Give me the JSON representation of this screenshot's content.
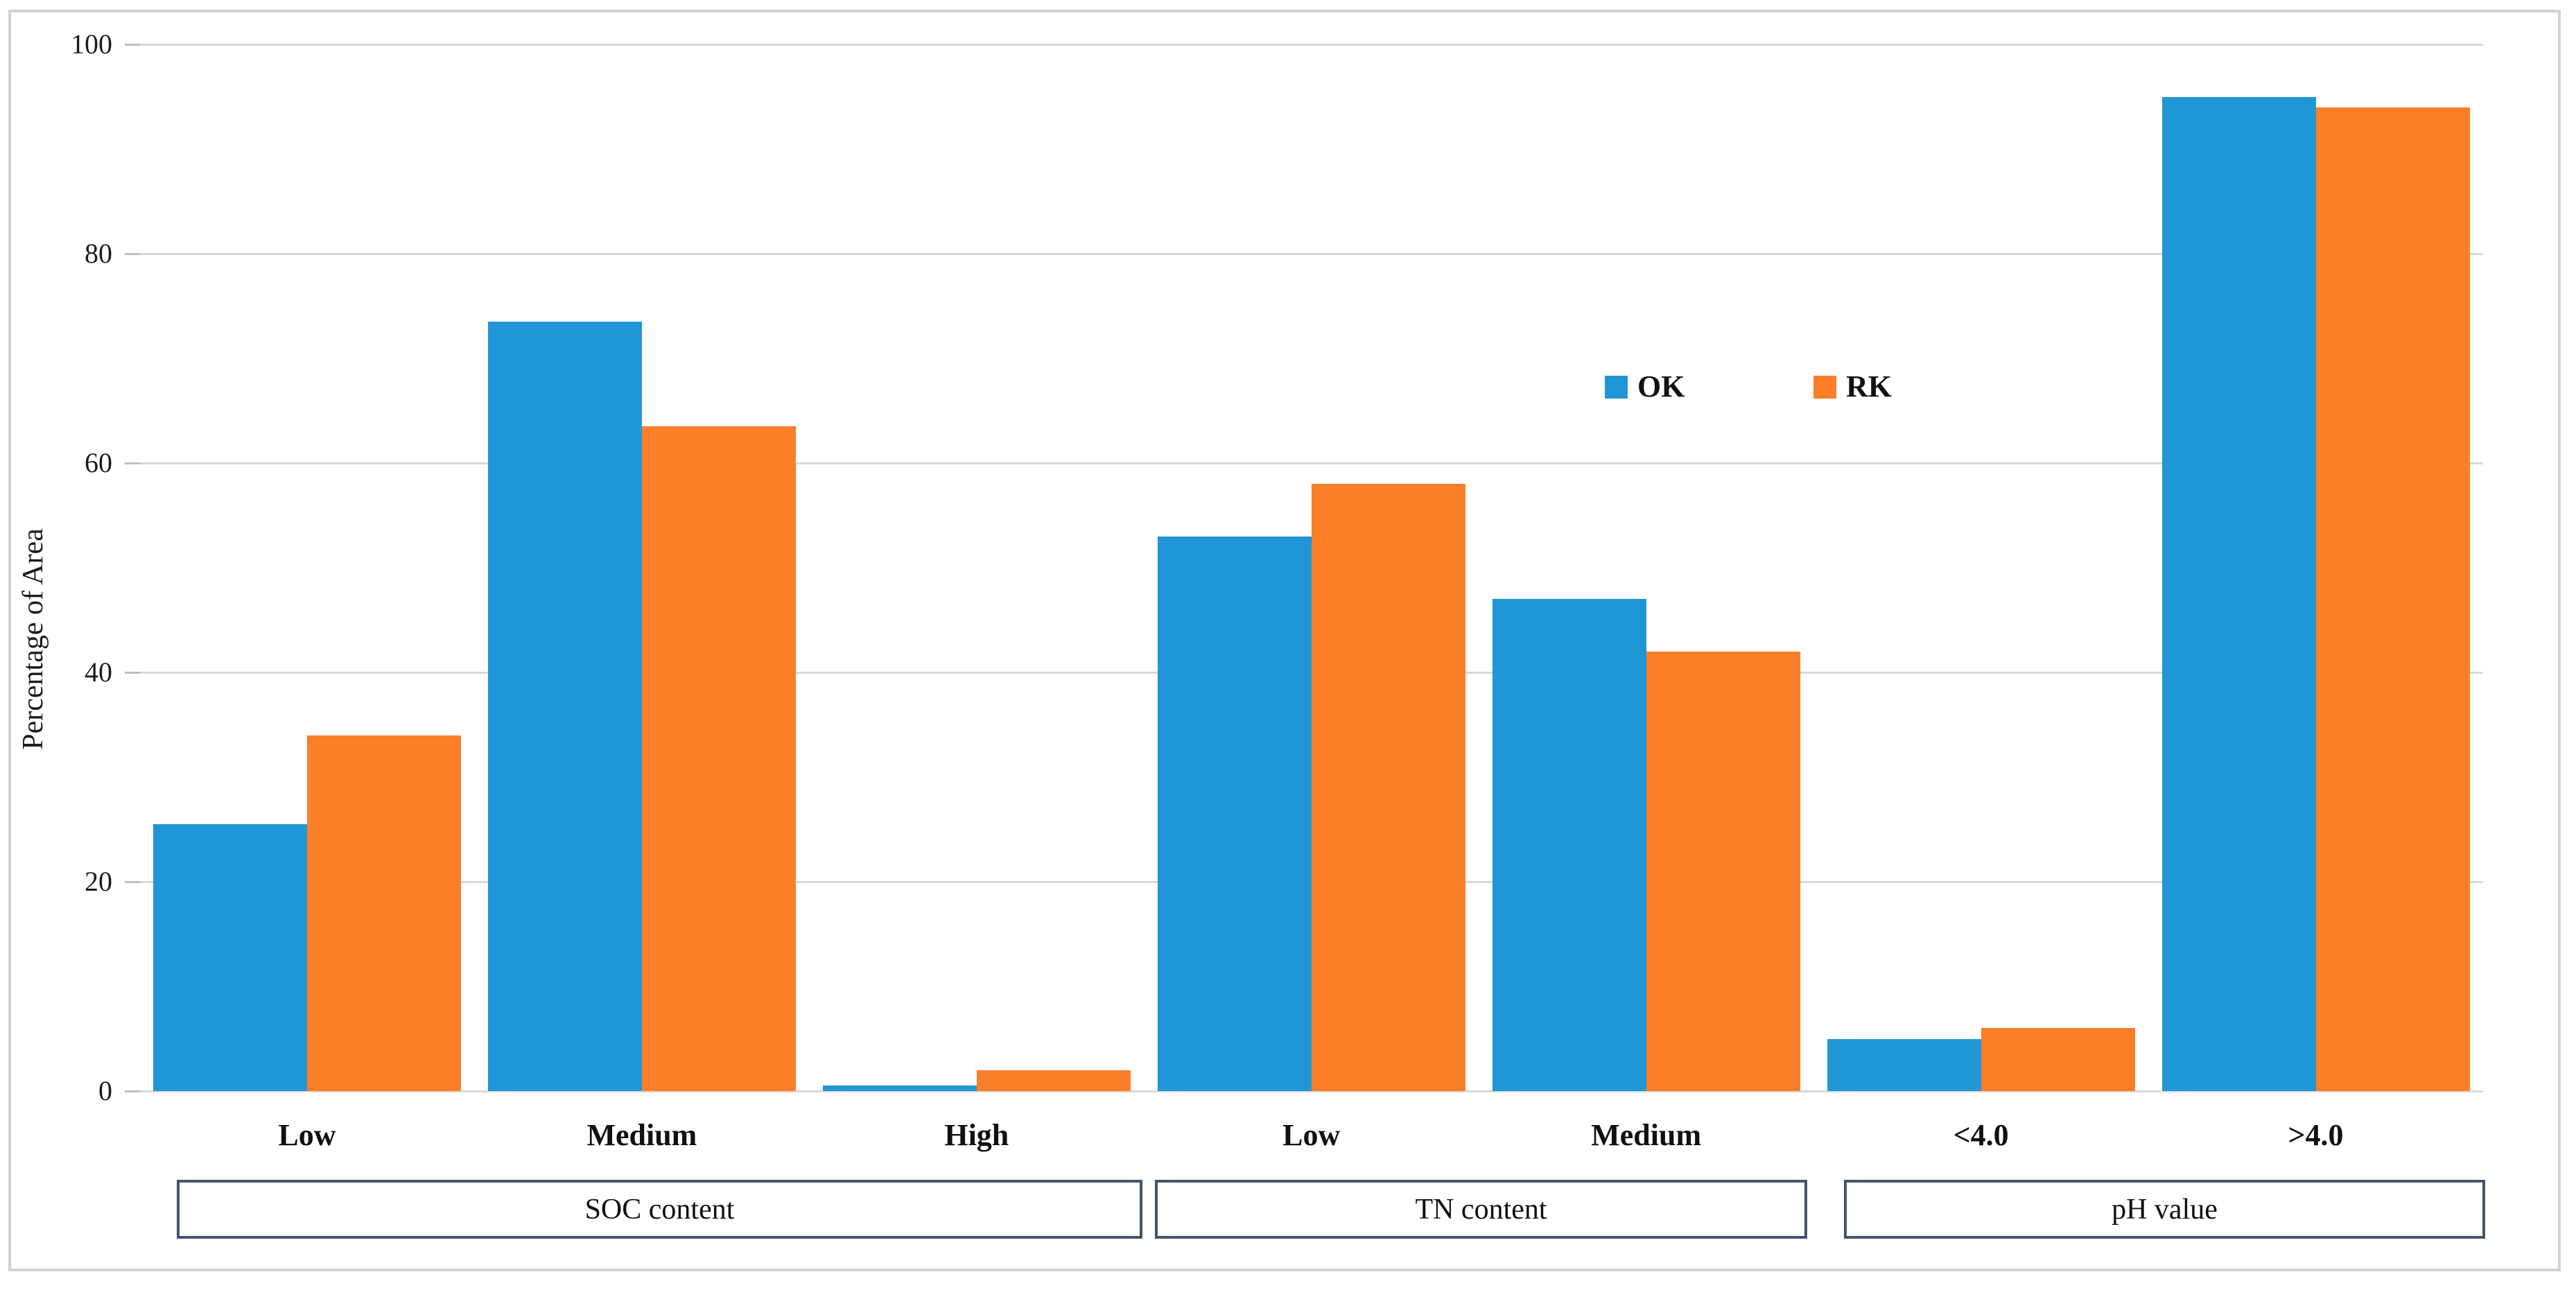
{
  "figure": {
    "y_axis_title": "Percentage of Area",
    "y_ticks": [
      "0",
      "20",
      "40",
      "60",
      "80",
      "100"
    ],
    "colors": {
      "series_ok": "#2196d6",
      "series_rk": "#fb7e28",
      "gridline": "#d9d9d9",
      "group_box_border": "#44546a",
      "figure_border": "#d2d2d2",
      "text": "#1c1c1c"
    }
  },
  "chart_data": {
    "type": "bar",
    "title": "",
    "xlabel": "",
    "ylabel": "Percentage of Area",
    "ylim": [
      0,
      100
    ],
    "y_step": 20,
    "grid": true,
    "legend_position": "inside-plot upper-right area",
    "categories": [
      "Low",
      "Medium",
      "High",
      "Low",
      "Medium",
      "<4.0",
      ">4.0"
    ],
    "group_axis": [
      {
        "label": "SOC content",
        "categories": [
          "Low",
          "Medium",
          "High"
        ]
      },
      {
        "label": "TN content",
        "categories": [
          "Low",
          "Medium"
        ]
      },
      {
        "label": "pH value",
        "categories": [
          "<4.0",
          ">4.0"
        ]
      }
    ],
    "series": [
      {
        "name": "OK",
        "color": "#2196d6",
        "values": [
          25.5,
          73.5,
          0.5,
          53,
          47,
          5,
          95
        ]
      },
      {
        "name": "RK",
        "color": "#fb7e28",
        "values": [
          34,
          63.5,
          2,
          58,
          42,
          6,
          94
        ]
      }
    ]
  }
}
